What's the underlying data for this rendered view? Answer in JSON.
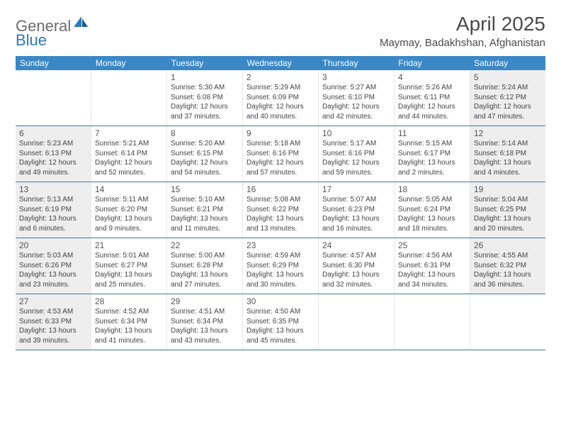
{
  "brand": {
    "part1": "General",
    "part2": "Blue"
  },
  "header": {
    "title": "April 2025",
    "location": "Maymay, Badakhshan, Afghanistan"
  },
  "colors": {
    "headerBar": "#3b88c7",
    "rowBorder": "#3b78a8",
    "shaded": "#eeeeee",
    "logoGray": "#6b6b6b",
    "logoBlue": "#2b78bd",
    "text": "#333333"
  },
  "weekdays": [
    "Sunday",
    "Monday",
    "Tuesday",
    "Wednesday",
    "Thursday",
    "Friday",
    "Saturday"
  ],
  "weeks": [
    [
      {
        "n": "",
        "sunrise": "",
        "sunset": "",
        "daylight": ""
      },
      {
        "n": "",
        "sunrise": "",
        "sunset": "",
        "daylight": ""
      },
      {
        "n": "1",
        "sunrise": "Sunrise: 5:30 AM",
        "sunset": "Sunset: 6:08 PM",
        "daylight": "Daylight: 12 hours and 37 minutes."
      },
      {
        "n": "2",
        "sunrise": "Sunrise: 5:29 AM",
        "sunset": "Sunset: 6:09 PM",
        "daylight": "Daylight: 12 hours and 40 minutes."
      },
      {
        "n": "3",
        "sunrise": "Sunrise: 5:27 AM",
        "sunset": "Sunset: 6:10 PM",
        "daylight": "Daylight: 12 hours and 42 minutes."
      },
      {
        "n": "4",
        "sunrise": "Sunrise: 5:26 AM",
        "sunset": "Sunset: 6:11 PM",
        "daylight": "Daylight: 12 hours and 44 minutes."
      },
      {
        "n": "5",
        "sunrise": "Sunrise: 5:24 AM",
        "sunset": "Sunset: 6:12 PM",
        "daylight": "Daylight: 12 hours and 47 minutes."
      }
    ],
    [
      {
        "n": "6",
        "sunrise": "Sunrise: 5:23 AM",
        "sunset": "Sunset: 6:13 PM",
        "daylight": "Daylight: 12 hours and 49 minutes."
      },
      {
        "n": "7",
        "sunrise": "Sunrise: 5:21 AM",
        "sunset": "Sunset: 6:14 PM",
        "daylight": "Daylight: 12 hours and 52 minutes."
      },
      {
        "n": "8",
        "sunrise": "Sunrise: 5:20 AM",
        "sunset": "Sunset: 6:15 PM",
        "daylight": "Daylight: 12 hours and 54 minutes."
      },
      {
        "n": "9",
        "sunrise": "Sunrise: 5:18 AM",
        "sunset": "Sunset: 6:16 PM",
        "daylight": "Daylight: 12 hours and 57 minutes."
      },
      {
        "n": "10",
        "sunrise": "Sunrise: 5:17 AM",
        "sunset": "Sunset: 6:16 PM",
        "daylight": "Daylight: 12 hours and 59 minutes."
      },
      {
        "n": "11",
        "sunrise": "Sunrise: 5:15 AM",
        "sunset": "Sunset: 6:17 PM",
        "daylight": "Daylight: 13 hours and 2 minutes."
      },
      {
        "n": "12",
        "sunrise": "Sunrise: 5:14 AM",
        "sunset": "Sunset: 6:18 PM",
        "daylight": "Daylight: 13 hours and 4 minutes."
      }
    ],
    [
      {
        "n": "13",
        "sunrise": "Sunrise: 5:13 AM",
        "sunset": "Sunset: 6:19 PM",
        "daylight": "Daylight: 13 hours and 6 minutes."
      },
      {
        "n": "14",
        "sunrise": "Sunrise: 5:11 AM",
        "sunset": "Sunset: 6:20 PM",
        "daylight": "Daylight: 13 hours and 9 minutes."
      },
      {
        "n": "15",
        "sunrise": "Sunrise: 5:10 AM",
        "sunset": "Sunset: 6:21 PM",
        "daylight": "Daylight: 13 hours and 11 minutes."
      },
      {
        "n": "16",
        "sunrise": "Sunrise: 5:08 AM",
        "sunset": "Sunset: 6:22 PM",
        "daylight": "Daylight: 13 hours and 13 minutes."
      },
      {
        "n": "17",
        "sunrise": "Sunrise: 5:07 AM",
        "sunset": "Sunset: 6:23 PM",
        "daylight": "Daylight: 13 hours and 16 minutes."
      },
      {
        "n": "18",
        "sunrise": "Sunrise: 5:05 AM",
        "sunset": "Sunset: 6:24 PM",
        "daylight": "Daylight: 13 hours and 18 minutes."
      },
      {
        "n": "19",
        "sunrise": "Sunrise: 5:04 AM",
        "sunset": "Sunset: 6:25 PM",
        "daylight": "Daylight: 13 hours and 20 minutes."
      }
    ],
    [
      {
        "n": "20",
        "sunrise": "Sunrise: 5:03 AM",
        "sunset": "Sunset: 6:26 PM",
        "daylight": "Daylight: 13 hours and 23 minutes."
      },
      {
        "n": "21",
        "sunrise": "Sunrise: 5:01 AM",
        "sunset": "Sunset: 6:27 PM",
        "daylight": "Daylight: 13 hours and 25 minutes."
      },
      {
        "n": "22",
        "sunrise": "Sunrise: 5:00 AM",
        "sunset": "Sunset: 6:28 PM",
        "daylight": "Daylight: 13 hours and 27 minutes."
      },
      {
        "n": "23",
        "sunrise": "Sunrise: 4:59 AM",
        "sunset": "Sunset: 6:29 PM",
        "daylight": "Daylight: 13 hours and 30 minutes."
      },
      {
        "n": "24",
        "sunrise": "Sunrise: 4:57 AM",
        "sunset": "Sunset: 6:30 PM",
        "daylight": "Daylight: 13 hours and 32 minutes."
      },
      {
        "n": "25",
        "sunrise": "Sunrise: 4:56 AM",
        "sunset": "Sunset: 6:31 PM",
        "daylight": "Daylight: 13 hours and 34 minutes."
      },
      {
        "n": "26",
        "sunrise": "Sunrise: 4:55 AM",
        "sunset": "Sunset: 6:32 PM",
        "daylight": "Daylight: 13 hours and 36 minutes."
      }
    ],
    [
      {
        "n": "27",
        "sunrise": "Sunrise: 4:53 AM",
        "sunset": "Sunset: 6:33 PM",
        "daylight": "Daylight: 13 hours and 39 minutes."
      },
      {
        "n": "28",
        "sunrise": "Sunrise: 4:52 AM",
        "sunset": "Sunset: 6:34 PM",
        "daylight": "Daylight: 13 hours and 41 minutes."
      },
      {
        "n": "29",
        "sunrise": "Sunrise: 4:51 AM",
        "sunset": "Sunset: 6:34 PM",
        "daylight": "Daylight: 13 hours and 43 minutes."
      },
      {
        "n": "30",
        "sunrise": "Sunrise: 4:50 AM",
        "sunset": "Sunset: 6:35 PM",
        "daylight": "Daylight: 13 hours and 45 minutes."
      },
      {
        "n": "",
        "sunrise": "",
        "sunset": "",
        "daylight": ""
      },
      {
        "n": "",
        "sunrise": "",
        "sunset": "",
        "daylight": ""
      },
      {
        "n": "",
        "sunrise": "",
        "sunset": "",
        "daylight": ""
      }
    ]
  ],
  "shaded_days": [
    "5",
    "6",
    "12",
    "13",
    "19",
    "20",
    "26",
    "27"
  ]
}
